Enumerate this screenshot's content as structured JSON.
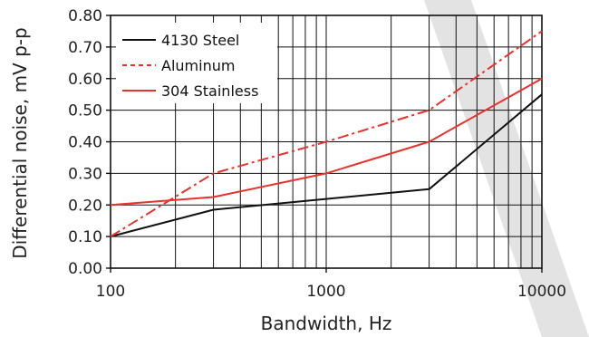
{
  "chart_data": {
    "type": "line",
    "xlabel": "Bandwidth, Hz",
    "ylabel": "Differential noise, mV p-p",
    "xscale": "log",
    "xlim": [
      100,
      10000
    ],
    "ylim": [
      0.0,
      0.8
    ],
    "grid": true,
    "legend_position": "top-left",
    "x_tick_labels": [
      "100",
      "1000",
      "10000"
    ],
    "y_tick_labels": [
      "0.00",
      "0.10",
      "0.20",
      "0.30",
      "0.40",
      "0.50",
      "0.60",
      "0.70",
      "0.80"
    ],
    "series": [
      {
        "name": "4130 Steel",
        "color": "#111111",
        "style": "solid",
        "x": [
          100,
          300,
          3000,
          10000
        ],
        "y": [
          0.1,
          0.185,
          0.25,
          0.55
        ]
      },
      {
        "name": "Aluminum",
        "color": "#e8322b",
        "style": "dashdot",
        "x": [
          100,
          300,
          1000,
          3000,
          10000
        ],
        "y": [
          0.1,
          0.3,
          0.4,
          0.5,
          0.75
        ]
      },
      {
        "name": "304 Stainless",
        "color": "#e8322b",
        "style": "solid",
        "x": [
          100,
          300,
          1000,
          3000,
          10000
        ],
        "y": [
          0.2,
          0.225,
          0.3,
          0.4,
          0.6
        ]
      }
    ]
  }
}
